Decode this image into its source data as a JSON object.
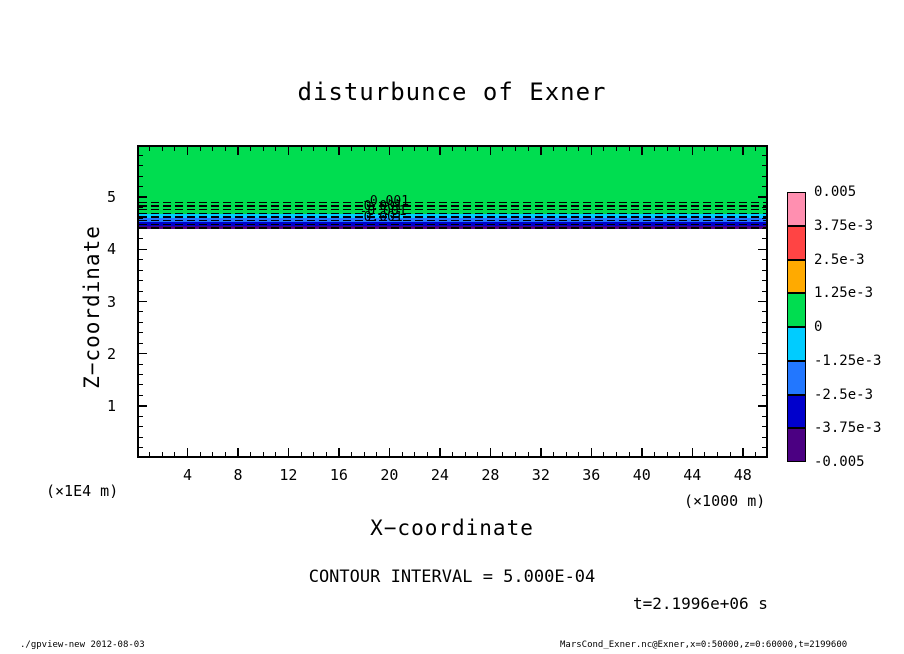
{
  "title": "disturbunce of Exner",
  "axes": {
    "x": {
      "label": "X−coordinate",
      "unit": "(×1000 m)"
    },
    "y": {
      "label": "Z−coordinate",
      "unit": "(×1E4 m)"
    }
  },
  "annotations": {
    "contour_interval": "CONTOUR INTERVAL = 5.000E-04",
    "time": "t=2.1996e+06 s"
  },
  "footer": {
    "left": "./gpview-new  2012-08-03",
    "right": "MarsCond_Exner.nc@Exner,x=0:50000,z=0:60000,t=2199600"
  },
  "chart_data": {
    "type": "heatmap",
    "subtype": "tone-shading with dashed negative contours (gpview/DCL style)",
    "title": "disturbunce of Exner",
    "xlabel": "X−coordinate",
    "x_unit_factor": "(×1000 m)",
    "ylabel": "Z−coordinate",
    "y_unit_factor": "(×1E4 m)",
    "xlim": [
      0,
      50
    ],
    "ylim": [
      0,
      6
    ],
    "x_ticks": [
      4,
      8,
      12,
      16,
      20,
      24,
      28,
      32,
      36,
      40,
      44,
      48
    ],
    "x_minor_step": 1,
    "y_ticks": [
      1,
      2,
      3,
      4,
      5
    ],
    "y_minor_step": 0.2,
    "contour_interval": 0.0005,
    "note": "Field is near zero (green tone) from top of domain down to z≈4.7; thin stratified negative-anomaly layer of cyan/blue/navy/violet tones near z≈4.5; untoned (white) below z≈4.4",
    "tone_bands": [
      {
        "z0": 4.72,
        "z1": 6.0,
        "color": "#00dd50"
      },
      {
        "z0": 4.64,
        "z1": 4.72,
        "color": "#00ccff"
      },
      {
        "z0": 4.56,
        "z1": 4.64,
        "color": "#2277ff"
      },
      {
        "z0": 4.48,
        "z1": 4.56,
        "color": "#0000cc"
      },
      {
        "z0": 4.42,
        "z1": 4.48,
        "color": "#4b0082"
      }
    ],
    "contour_lines": {
      "style": "dashed",
      "z_values": [
        4.94,
        4.87,
        4.8,
        4.73,
        4.66,
        4.59,
        4.52,
        4.45
      ],
      "labels": [
        {
          "text": "-0.001",
          "x": 19.5,
          "z": 4.93
        },
        {
          "text": "-0.001",
          "x": 19.0,
          "z": 4.83
        },
        {
          "text": "-0.001",
          "x": 19.3,
          "z": 4.73
        },
        {
          "text": "-0.001",
          "x": 19.0,
          "z": 4.62
        }
      ]
    },
    "colorbar": {
      "position": "right",
      "labels": [
        "0.005",
        "3.75e-3",
        "2.5e-3",
        "1.25e-3",
        "0",
        "-1.25e-3",
        "-2.5e-3",
        "-3.75e-3",
        "-0.005"
      ],
      "colors": [
        "#ff8fb0",
        "#ff4444",
        "#ffaa00",
        "#00dd50",
        "#00ccff",
        "#2277ff",
        "#0000cc",
        "#4b0082"
      ]
    }
  }
}
